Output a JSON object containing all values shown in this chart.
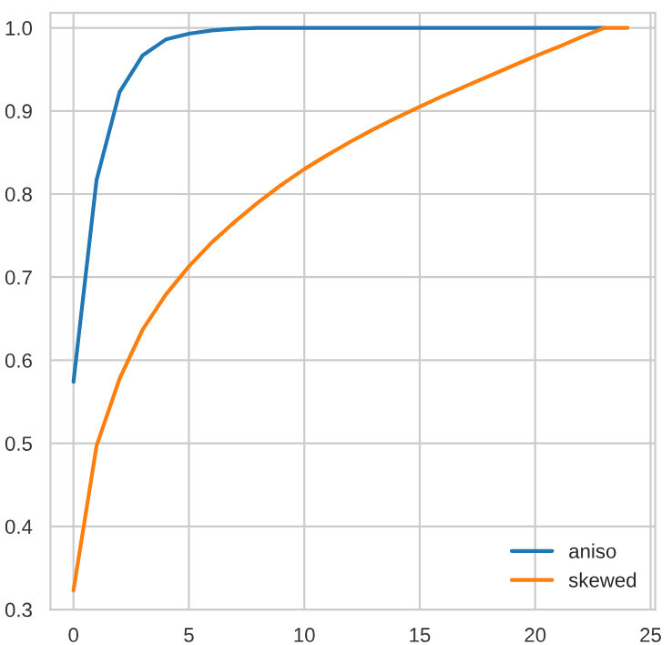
{
  "chart_data": {
    "type": "line",
    "series": [
      {
        "name": "aniso",
        "color": "#1f77b4",
        "x": [
          0,
          1,
          2,
          3,
          4,
          5,
          6,
          7,
          8,
          9,
          10,
          11,
          12,
          13,
          14,
          15,
          16,
          17,
          18,
          19,
          20,
          21,
          22,
          23
        ],
        "values": [
          0.574,
          0.817,
          0.923,
          0.967,
          0.986,
          0.993,
          0.997,
          0.999,
          1.0,
          1.0,
          1.0,
          1.0,
          1.0,
          1.0,
          1.0,
          1.0,
          1.0,
          1.0,
          1.0,
          1.0,
          1.0,
          1.0,
          1.0,
          1.0
        ]
      },
      {
        "name": "skewed",
        "color": "#ff7f0e",
        "x": [
          0,
          1,
          2,
          3,
          4,
          5,
          6,
          7,
          8,
          9,
          10,
          11,
          12,
          13,
          14,
          15,
          16,
          17,
          18,
          19,
          20,
          21,
          22,
          23,
          24
        ],
        "values": [
          0.323,
          0.497,
          0.578,
          0.637,
          0.679,
          0.713,
          0.742,
          0.767,
          0.79,
          0.811,
          0.83,
          0.847,
          0.863,
          0.878,
          0.892,
          0.905,
          0.918,
          0.93,
          0.942,
          0.954,
          0.966,
          0.977,
          0.989,
          1.0,
          1.0
        ]
      }
    ],
    "xlim": [
      -1.0,
      25.2
    ],
    "ylim": [
      0.3,
      1.018
    ],
    "xticks": [
      0,
      5,
      10,
      15,
      20,
      25
    ],
    "yticks": [
      0.3,
      0.4,
      0.5,
      0.6,
      0.7,
      0.8,
      0.9,
      {
        "value": 1.0,
        "label": "1.0"
      }
    ],
    "grid": true,
    "legend": "lower right",
    "marker": "none",
    "line_style": "solid"
  }
}
